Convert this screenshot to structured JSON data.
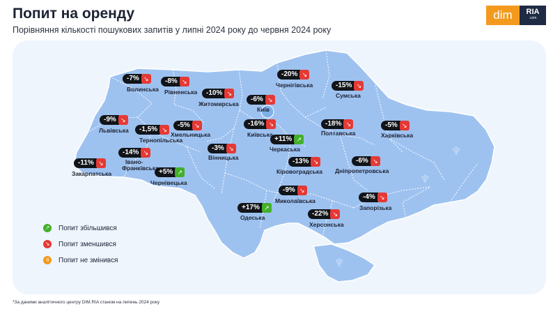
{
  "title": "Попит на оренду",
  "subtitle": "Порівняння кількості пошукових запитів у липні 2024 року до червня 2024 року",
  "logo": {
    "left": "dim",
    "right": "RIA",
    "right_sub": ".com"
  },
  "colors": {
    "increase": "#43b02a",
    "decrease": "#e53935",
    "unchanged": "#f39a1e",
    "map_fill": "#9ec2f0",
    "panel_bg": "#eef5fd",
    "badge_bg": "#111418"
  },
  "regions": {
    "volynska": {
      "name": "Волинська",
      "change": "-7%",
      "direction": "down"
    },
    "rivnenska": {
      "name": "Рівненська",
      "change": "-8%",
      "direction": "down"
    },
    "zhytomyrska": {
      "name": "Житомирська",
      "change": "-10%",
      "direction": "down"
    },
    "kyiv": {
      "name": "Київ",
      "change": "-6%",
      "direction": "down"
    },
    "chernihivska": {
      "name": "Чернігівська",
      "change": "-20%",
      "direction": "down"
    },
    "sumska": {
      "name": "Сумська",
      "change": "-15%",
      "direction": "down"
    },
    "lvivska": {
      "name": "Львівська",
      "change": "-9%",
      "direction": "down"
    },
    "ternopilska": {
      "name": "Тернопільська",
      "change": "-1,5%",
      "direction": "down"
    },
    "khmelnytska": {
      "name": "Хмельницька",
      "change": "-5%",
      "direction": "down"
    },
    "kyivska": {
      "name": "Київська",
      "change": "-16%",
      "direction": "down"
    },
    "poltavska": {
      "name": "Полтавська",
      "change": "-18%",
      "direction": "down"
    },
    "kharkivska": {
      "name": "Харківська",
      "change": "-5%",
      "direction": "down"
    },
    "zakarpatska": {
      "name": "Закарпатська",
      "change": "-11%",
      "direction": "down"
    },
    "ivano_frankivska": {
      "name1": "Івано-",
      "name2": "Франківська",
      "change": "-14%",
      "direction": "down"
    },
    "vinnytska": {
      "name": "Вінницька",
      "change": "-3%",
      "direction": "down"
    },
    "cherkaska": {
      "name": "Черкаська",
      "change": "+11%",
      "direction": "up"
    },
    "chernivetska": {
      "name": "Чернівецька",
      "change": "+5%",
      "direction": "up"
    },
    "kirovohradska": {
      "name": "Кіровоградська",
      "change": "-13%",
      "direction": "down"
    },
    "dnipropetrovska": {
      "name": "Дніпропетровська",
      "change": "-6%",
      "direction": "down"
    },
    "mykolaivska": {
      "name": "Миколаївська",
      "change": "-9%",
      "direction": "down"
    },
    "zaporizka": {
      "name": "Запорізька",
      "change": "-4%",
      "direction": "down"
    },
    "odeska": {
      "name": "Одеська",
      "change": "+17%",
      "direction": "up"
    },
    "khersonska": {
      "name": "Херсонська",
      "change": "-22%",
      "direction": "down"
    }
  },
  "legend": [
    {
      "label": "Попит збільшився",
      "type": "up"
    },
    {
      "label": "Попит зменшився",
      "type": "down"
    },
    {
      "label": "Попит не змінився",
      "type": "same"
    }
  ],
  "footnote": "*За даними аналітичного центру DIM.RIA станом на липень 2024 року"
}
